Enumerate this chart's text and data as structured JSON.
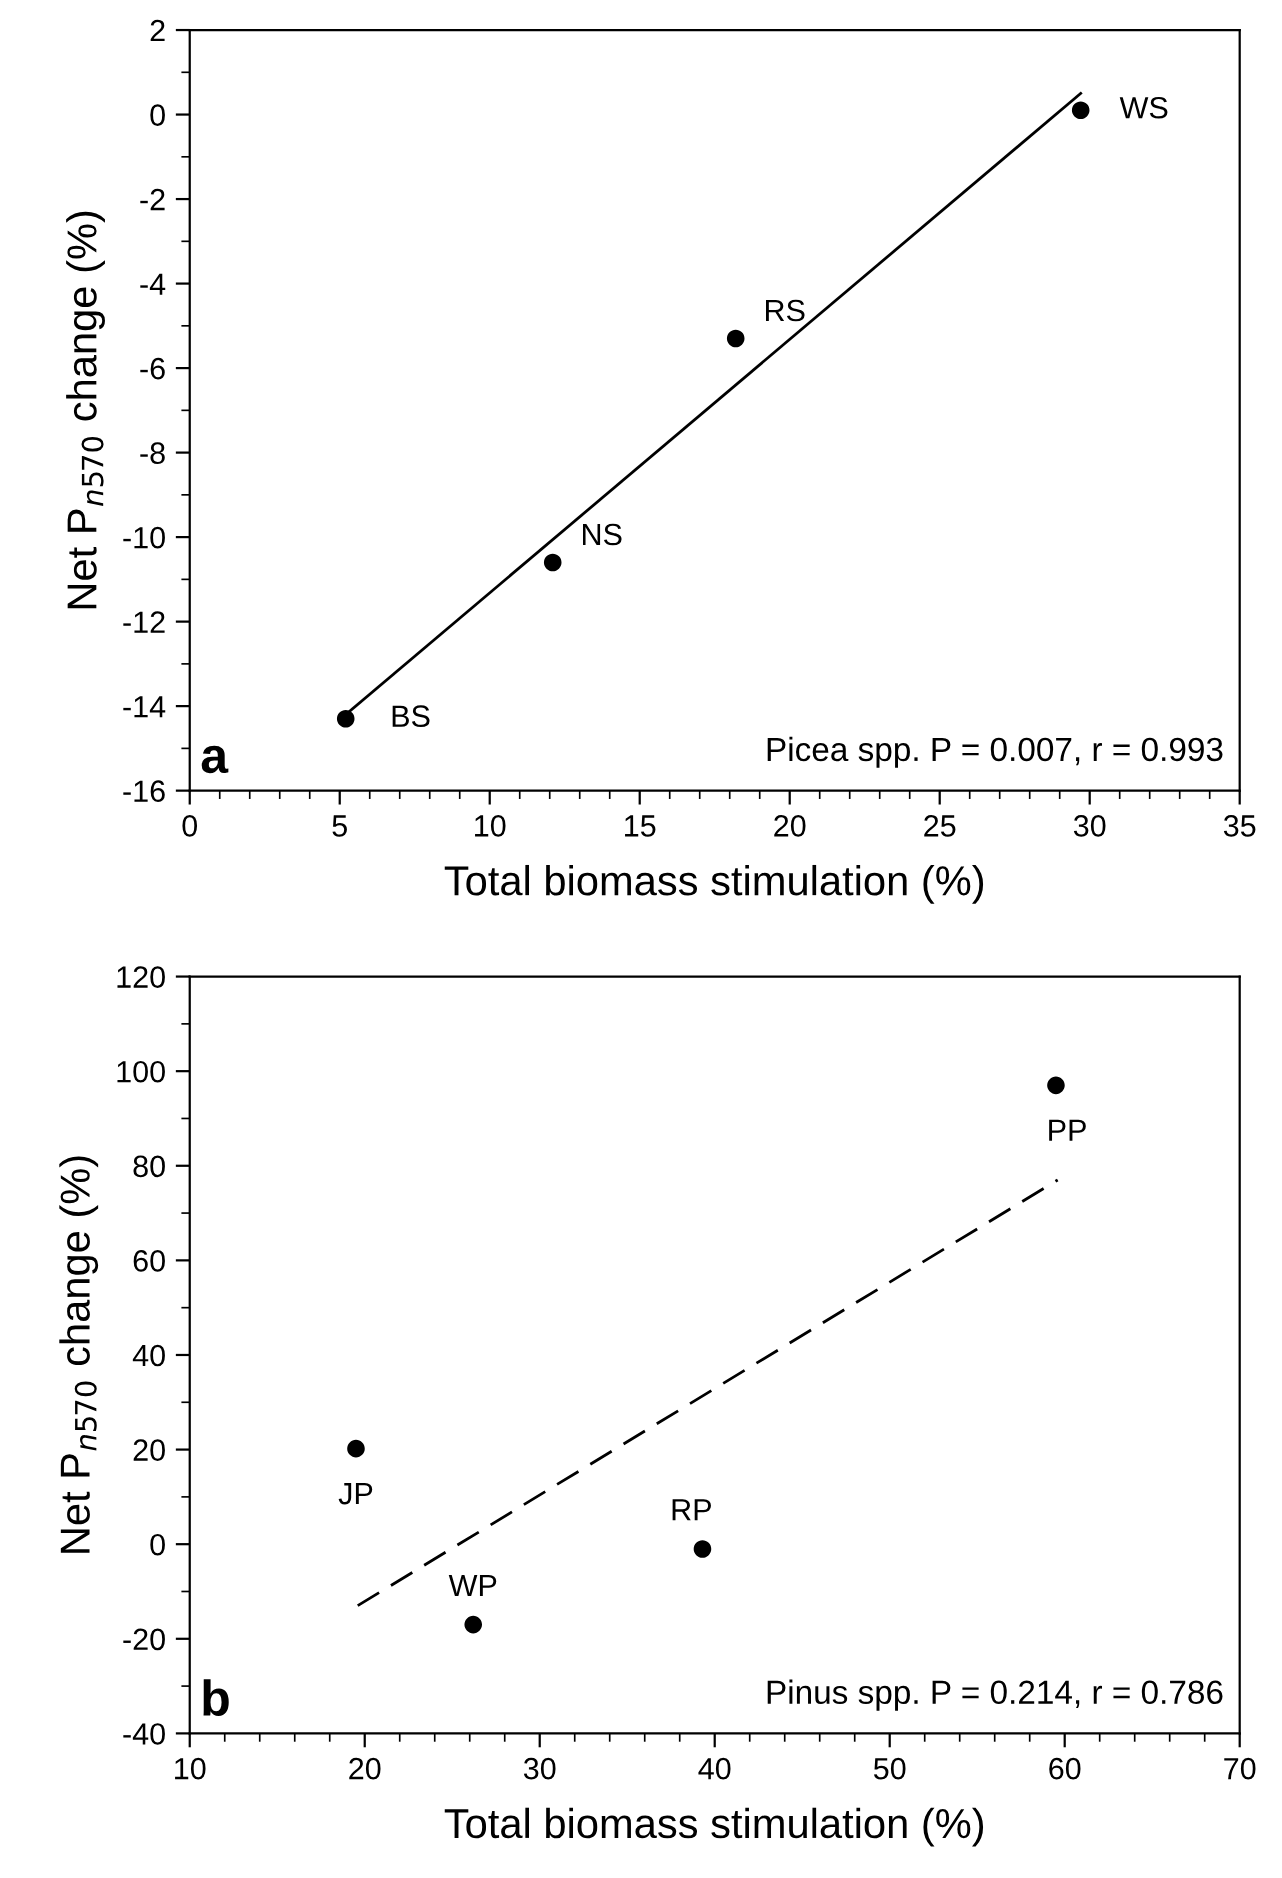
{
  "chart_data": [
    {
      "type": "scatter",
      "xlabel": "Total biomass stimulation (%)",
      "xlim": [
        0,
        35
      ],
      "xticks": [
        0,
        5,
        10,
        15,
        20,
        25,
        30,
        35
      ],
      "ylim": [
        -16,
        2
      ],
      "yticks": [
        -16,
        -14,
        -12,
        -10,
        -8,
        -6,
        -4,
        -2,
        0,
        2
      ],
      "grid": false,
      "legend": false,
      "ylabel": "Net P$_{n570}$ change (%)",
      "series": [
        {
          "type": "scatter",
          "marker": "circle",
          "color": "#000000",
          "x": [
            5.2,
            12.1,
            18.2,
            29.7
          ],
          "values": [
            -14.3,
            -10.6,
            -5.3,
            0.1
          ]
        },
        {
          "type": "line",
          "color": "#000000",
          "line_style": "solid",
          "x": [
            5.2,
            29.7
          ],
          "values": [
            -14.2,
            0.5
          ]
        }
      ],
      "annotations": [
        {
          "text": "BS",
          "x": 5.2,
          "y": -14.3
        },
        {
          "text": "NS",
          "x": 12.1,
          "y": -10.6
        },
        {
          "text": "RS",
          "x": 18.2,
          "y": -5.3
        },
        {
          "text": "WS",
          "x": 29.7,
          "y": 0.1
        },
        "a",
        "Picea spp. P = 0.007, r = 0.993"
      ]
    },
    {
      "type": "scatter",
      "xlabel": "Total biomass stimulation (%)",
      "xlim": [
        10,
        70
      ],
      "xticks": [
        10,
        20,
        30,
        40,
        50,
        60,
        70
      ],
      "ylim": [
        -40,
        120
      ],
      "yticks": [
        -40,
        -20,
        0,
        20,
        40,
        60,
        80,
        100,
        120
      ],
      "grid": false,
      "legend": false,
      "ylabel": "Net P$_{n570}$ change (%)",
      "series": [
        {
          "type": "scatter",
          "marker": "circle",
          "color": "#000000",
          "x": [
            19.5,
            26.2,
            39.3,
            59.5
          ],
          "values": [
            20.2,
            -17,
            -1,
            97
          ]
        },
        {
          "type": "line",
          "color": "#000000",
          "line_style": "dashed",
          "x": [
            19.6,
            59.6
          ],
          "values": [
            -13,
            77
          ]
        }
      ],
      "annotations": [
        {
          "text": "JP",
          "x": 19.5,
          "y": 20.2
        },
        {
          "text": "WP",
          "x": 26.2,
          "y": -17
        },
        {
          "text": "RP",
          "x": 39.3,
          "y": -1
        },
        {
          "text": "PP",
          "x": 59.5,
          "y": 97
        },
        "b",
        "Pinus spp. P = 0.214, r = 0.786"
      ]
    }
  ]
}
